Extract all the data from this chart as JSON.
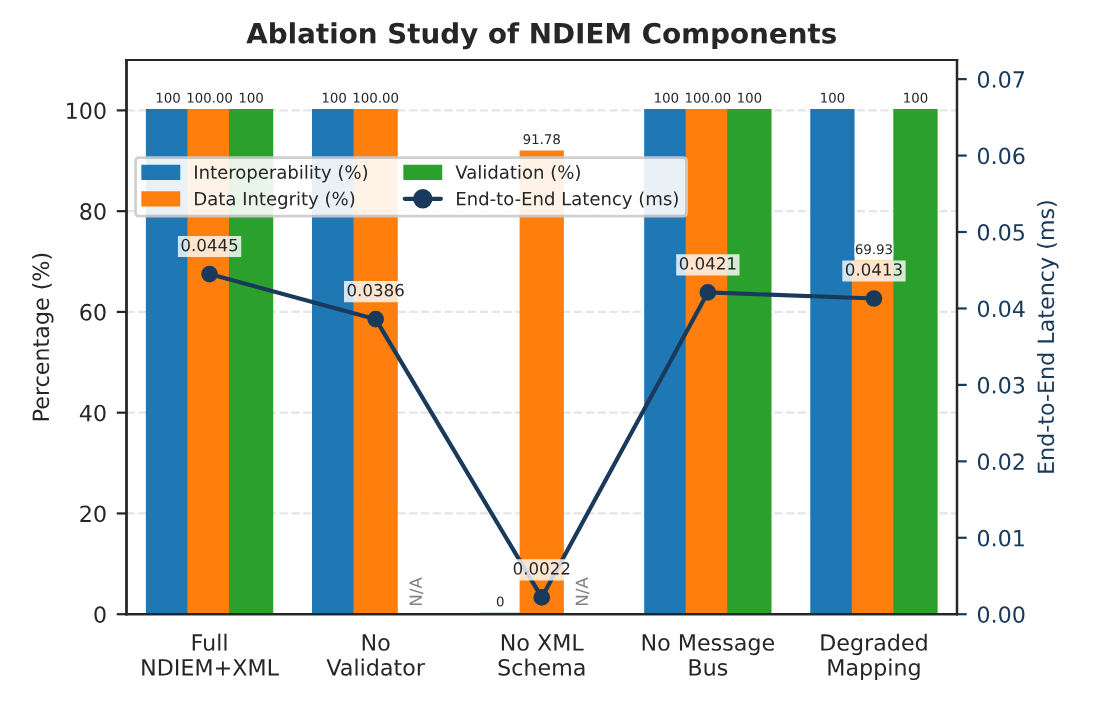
{
  "chart_data": {
    "type": "bar",
    "title": "Ablation Study of NDIEM Components",
    "ylabel": "Percentage (%)",
    "y2label": "End-to-End Latency (ms)",
    "categories": [
      "Full\nNDIEM+XML",
      "No\nValidator",
      "No XML\nSchema",
      "No Message\nBus",
      "Degraded\nMapping"
    ],
    "series": [
      {
        "name": "Interoperability (%)",
        "color": "#1f77b4",
        "values": [
          100,
          100,
          0,
          100,
          100
        ],
        "value_labels": [
          "100",
          "100",
          "0",
          "100",
          "100"
        ]
      },
      {
        "name": "Data Integrity (%)",
        "color": "#ff7f0e",
        "values": [
          100,
          100,
          91.78,
          100,
          69.93
        ],
        "value_labels": [
          "100.00",
          "100.00",
          "91.78",
          "100.00",
          "69.93"
        ]
      },
      {
        "name": "Validation (%)",
        "color": "#2ca02c",
        "values": [
          100,
          null,
          null,
          100,
          100
        ],
        "value_labels": [
          "100",
          "N/A",
          "N/A",
          "100",
          "100"
        ]
      },
      {
        "name": "End-to-End Latency (ms)",
        "type": "line",
        "axis": "y2",
        "color": "#1a3a5c",
        "marker": "circle",
        "values": [
          0.0445,
          0.0386,
          0.0022,
          0.0421,
          0.0413
        ],
        "value_labels": [
          "0.0445",
          "0.0386",
          "0.0022",
          "0.0421",
          "0.0413"
        ]
      }
    ],
    "ylim": [
      0,
      110
    ],
    "yticks": [
      0,
      20,
      40,
      60,
      80,
      100
    ],
    "y2lim": [
      0,
      0.0725
    ],
    "y2ticks": [
      {
        "value": 0,
        "label": "0.00"
      },
      {
        "value": 0.01,
        "label": "0.01"
      },
      {
        "value": 0.02,
        "label": "0.02"
      },
      {
        "value": 0.03,
        "label": "0.03"
      },
      {
        "value": 0.04,
        "label": "0.04"
      },
      {
        "value": 0.05,
        "label": "0.05"
      },
      {
        "value": 0.06,
        "label": "0.06"
      },
      {
        "value": 0.07,
        "label": "0.07"
      }
    ],
    "grid": "y",
    "legend": "top left"
  }
}
